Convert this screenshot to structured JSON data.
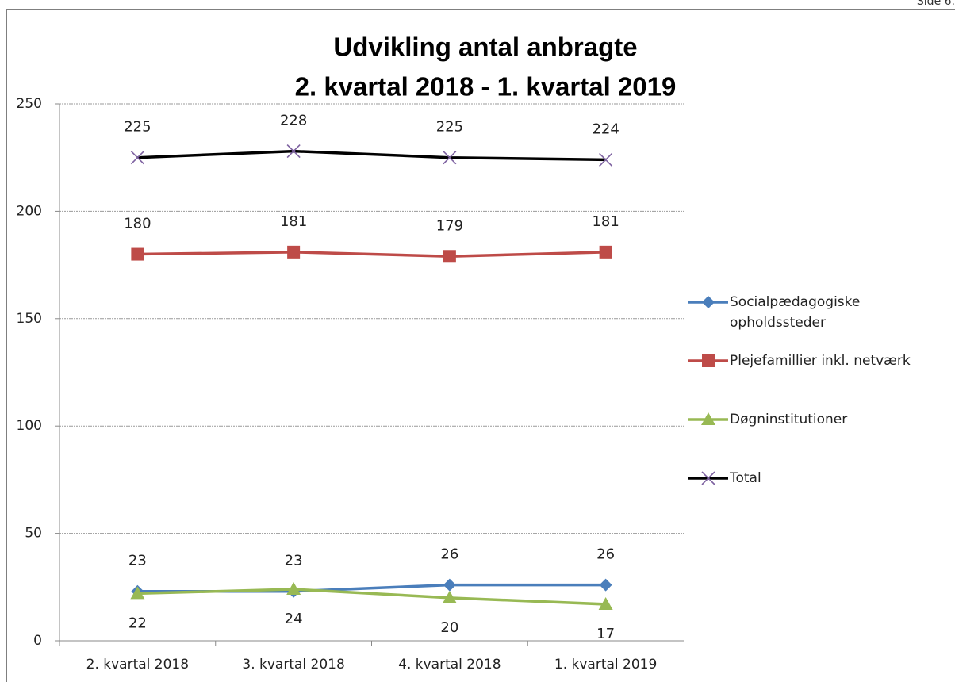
{
  "page_header": "Side 6.",
  "chart_data": {
    "type": "line",
    "title": "Udvikling antal anbragte",
    "subtitle": "2. kvartal 2018 - 1. kvartal 2019",
    "categories": [
      "2. kvartal 2018",
      "3. kvartal 2018",
      "4. kvartal 2018",
      "1. kvartal 2019"
    ],
    "series": [
      {
        "name": "Socialpædagogiske opholdssteder",
        "color": "#4a7ebb",
        "marker": "diamond",
        "label_position": "above",
        "values": [
          23,
          23,
          26,
          26
        ]
      },
      {
        "name": "Plejefamillier inkl. netværk",
        "color": "#be4b48",
        "marker": "square",
        "label_position": "above",
        "values": [
          180,
          181,
          179,
          181
        ]
      },
      {
        "name": "Døgninstitutioner",
        "color": "#98b954",
        "marker": "triangle",
        "label_position": "below",
        "values": [
          22,
          24,
          20,
          17
        ]
      },
      {
        "name": "Total",
        "color": "#000000",
        "marker_color": "#7e62a1",
        "marker": "x",
        "label_position": "above",
        "values": [
          225,
          228,
          225,
          224
        ]
      }
    ],
    "ylim": [
      0,
      250
    ],
    "yticks": [
      0,
      50,
      100,
      150,
      200,
      250
    ],
    "grid": true,
    "legend": "right"
  }
}
